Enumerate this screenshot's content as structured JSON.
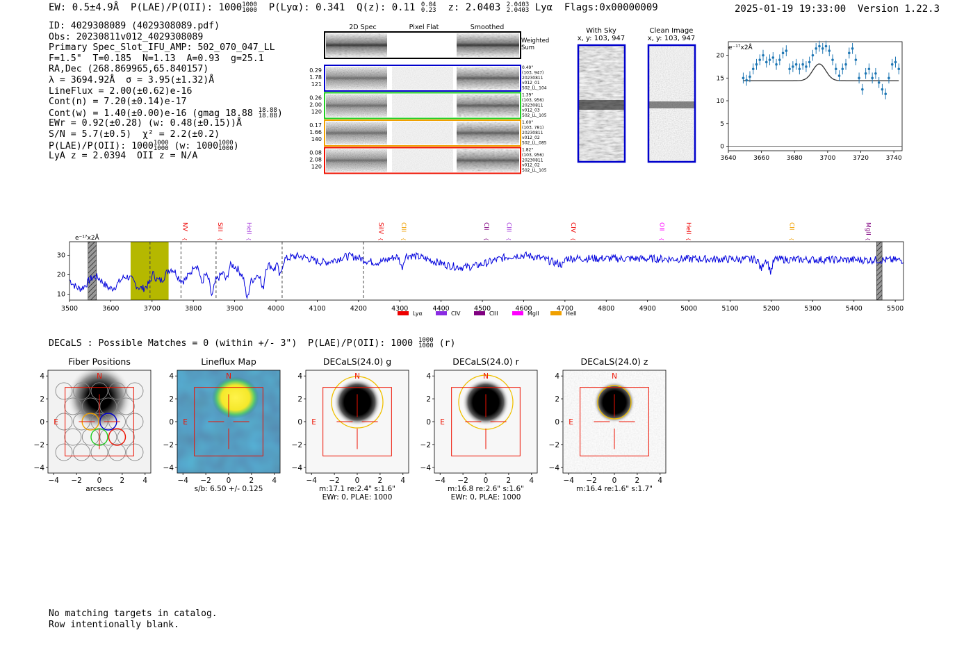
{
  "header": {
    "left": "EW: 0.5±4.9Å  P(LAE)/P(OII): 1000 1000/1000  P(Lyα): 0.341  Q(z): 0.11 0.04/0.23  z: 2.0403 2.0403/2.0403 Lyα  Flags:0x00000009",
    "ew": "EW: 0.5±4.9Å",
    "plae_label": "P(LAE)/P(OII):",
    "plae_val": "1000",
    "plae_hi": "1000",
    "plae_lo": "1000",
    "plya": "P(Lyα): 0.341",
    "qz": "Q(z): 0.11",
    "qz_hi": "0.04",
    "qz_lo": "0.23",
    "z": "z: 2.0403",
    "z_hi": "2.0403",
    "z_lo": "2.0403",
    "z_line": "Lyα",
    "flags": "Flags:0x00000009",
    "datetime": "2025-01-19 19:33:00",
    "version": "Version 1.22.3"
  },
  "info": {
    "id": "ID: 4029308089 (4029308089.pdf)",
    "obs": "Obs: 20230811v012_4029308089",
    "primary": "Primary Spec_Slot_IFU_AMP: 502_070_047_LL",
    "fwhm": "F=1.5\"  T=0.185  N=1.13  A=0.93  g=25.1",
    "radec": "RA,Dec (268.869965,65.840157)",
    "lambda": "λ = 3694.92Å  σ = 3.95(±1.32)Å",
    "lineflux": "LineFlux = 2.00(±0.62)e-16",
    "contn": "Cont(n) = 7.20(±0.14)e-17",
    "contw": "Cont(w) = 1.40(±0.00)e-16 (gmag 18.88",
    "gmag_hi": "18.88",
    "gmag_lo": "18.88",
    "ewr": "EWr = 0.92(±0.28) (w: 0.48(±0.15))Å",
    "sn": "S/N = 5.7(±0.5)  χ² = 2.2(±0.2)",
    "plae": "P(LAE)/P(OII): 1000",
    "plae_hi": "1000",
    "plae_lo": "1000",
    "plae_w": "(w: 1000",
    "plae_w_hi": "1000",
    "plae_w_lo": "1000",
    "lyaz": "LyA z = 2.0394  OII z = N/A"
  },
  "cutouts": {
    "col_titles": [
      "2D Spec",
      "Pixel Flat",
      "Smoothed"
    ],
    "weighted_sum": [
      "Weighted",
      "Sum"
    ],
    "rows": [
      {
        "nums": [
          "0.29",
          "1.78",
          "121"
        ],
        "meta": [
          "0.49\"",
          "(103, 947)",
          "20230811",
          "v012_01",
          "502_LL_104"
        ],
        "color": "#0000cc"
      },
      {
        "nums": [
          "0.26",
          "2.00",
          "120"
        ],
        "meta": [
          "1.39\"",
          "(103, 956)",
          "20230811",
          "v012_03",
          "502_LL_105"
        ],
        "color": "#22cc22"
      },
      {
        "nums": [
          "0.17",
          "1.66",
          "140"
        ],
        "meta": [
          "1.00\"",
          "(103, 781)",
          "20230811",
          "v012_02",
          "502_LL_085"
        ],
        "color": "#f0a000"
      },
      {
        "nums": [
          "0.08",
          "2.08",
          "120"
        ],
        "meta": [
          "1.82\"",
          "(103, 956)",
          "20230811",
          "v012_02",
          "502_LL_105"
        ],
        "color": "#ee1100"
      }
    ]
  },
  "sky_panels": [
    {
      "title": "With Sky",
      "coords": "x, y: 103, 947"
    },
    {
      "title": "Clean Image",
      "coords": "x, y: 103, 947"
    }
  ],
  "zoom_chart": {
    "type": "scatter",
    "unit": "e⁻¹⁷x2Å",
    "xlim": [
      3640,
      3745
    ],
    "ylim": [
      -1,
      23
    ],
    "xticks": [
      3640,
      3660,
      3680,
      3700,
      3720,
      3740
    ],
    "yticks": [
      0,
      5,
      10,
      15,
      20
    ],
    "points": [
      [
        3649,
        15
      ],
      [
        3651,
        14.5
      ],
      [
        3653,
        15.3
      ],
      [
        3655,
        17
      ],
      [
        3657,
        18
      ],
      [
        3659,
        19
      ],
      [
        3661,
        20
      ],
      [
        3663,
        18.5
      ],
      [
        3665,
        19
      ],
      [
        3667,
        19.5
      ],
      [
        3669,
        18
      ],
      [
        3671,
        19
      ],
      [
        3673,
        20.5
      ],
      [
        3675,
        21
      ],
      [
        3677,
        17
      ],
      [
        3679,
        17.5
      ],
      [
        3681,
        18
      ],
      [
        3683,
        17
      ],
      [
        3685,
        18
      ],
      [
        3687,
        17.5
      ],
      [
        3689,
        18.5
      ],
      [
        3691,
        20
      ],
      [
        3693,
        21.5
      ],
      [
        3695,
        22
      ],
      [
        3697,
        21.5
      ],
      [
        3699,
        22
      ],
      [
        3701,
        21
      ],
      [
        3703,
        19
      ],
      [
        3705,
        17
      ],
      [
        3707,
        15.5
      ],
      [
        3709,
        17
      ],
      [
        3711,
        18
      ],
      [
        3713,
        20.5
      ],
      [
        3715,
        21.5
      ],
      [
        3717,
        19
      ],
      [
        3719,
        15
      ],
      [
        3721,
        12.5
      ],
      [
        3723,
        16
      ],
      [
        3725,
        17
      ],
      [
        3727,
        15
      ],
      [
        3729,
        16
      ],
      [
        3731,
        14
      ],
      [
        3733,
        12.5
      ],
      [
        3735,
        11.5
      ],
      [
        3737,
        15
      ],
      [
        3739,
        18
      ],
      [
        3741,
        18.5
      ],
      [
        3743,
        17
      ]
    ],
    "model": {
      "continuum": 14.4,
      "center": 3694.92,
      "sigma": 3.95,
      "amp": 3.7,
      "x_range": [
        3649,
        3743
      ]
    }
  },
  "full_spectrum": {
    "type": "line",
    "unit": "e⁻¹⁷x2Å",
    "xlim": [
      3500,
      5520
    ],
    "ylim": [
      7,
      37
    ],
    "xticks": [
      3500,
      3600,
      3700,
      3800,
      3900,
      4000,
      4100,
      4200,
      4300,
      4400,
      4500,
      4600,
      4700,
      4800,
      4900,
      5000,
      5100,
      5200,
      5300,
      5400,
      5500
    ],
    "yticks": [
      10,
      20,
      30
    ],
    "line_labels": [
      {
        "label": "NV",
        "x": 3770,
        "color": "#ee0000"
      },
      {
        "label": "SiII",
        "x": 3855,
        "color": "#ee0000"
      },
      {
        "label": "HeII",
        "x": 3925,
        "color": "#aa44dd"
      },
      {
        "label": "SiIV",
        "x": 4245,
        "color": "#ee0000"
      },
      {
        "label": "CIII",
        "x": 4300,
        "color": "#f0a000"
      },
      {
        "label": "CII",
        "x": 4500,
        "color": "#800080"
      },
      {
        "label": "CIII",
        "x": 4555,
        "color": "#aa44dd"
      },
      {
        "label": "CIV",
        "x": 4710,
        "color": "#ee0000"
      },
      {
        "label": "OII",
        "x": 4925,
        "color": "#ff00ff"
      },
      {
        "label": "HeII",
        "x": 4990,
        "color": "#ee0000"
      },
      {
        "label": "CII",
        "x": 5240,
        "color": "#f0a000"
      },
      {
        "label": "MgII",
        "x": 5425,
        "color": "#800080"
      }
    ],
    "dashed_lines": [
      3695,
      3770,
      3855,
      4015,
      4212
    ],
    "highlight_band": [
      3648,
      3740
    ],
    "hatched_bands": [
      [
        3545,
        3565
      ],
      [
        5455,
        5468
      ]
    ],
    "legend": [
      {
        "label": "Lyα",
        "color": "#ee0000"
      },
      {
        "label": "CIV",
        "color": "#8a2be2"
      },
      {
        "label": "CIII",
        "color": "#800080"
      },
      {
        "label": "MgII",
        "color": "#ff00ff"
      },
      {
        "label": "HeII",
        "color": "#f0a000"
      }
    ]
  },
  "decals": {
    "title": "DECaLS : Possible Matches = 0 (within +/- 3\")  P(LAE)/P(OII): 1000",
    "title_hi": "1000",
    "title_lo": "1000",
    "title_suffix": "(r)",
    "ticks": [
      "−4",
      "−2",
      "0",
      "2",
      "4"
    ],
    "north": "N",
    "east": "E",
    "panels": [
      {
        "title": "Fiber Positions",
        "cap1": "arcsecs",
        "cap2": ""
      },
      {
        "title": "Lineflux Map",
        "cap1": "s/b: 6.50 +/- 0.125",
        "cap2": ""
      },
      {
        "title": "DECaLS(24.0) g",
        "cap1": "m:17.1  re:2.4\"  s:1.6\"",
        "cap2": "EWr: 0, PLAE: 1000"
      },
      {
        "title": "DECaLS(24.0) r",
        "cap1": "m:16.8  re:2.6\"  s:1.6\"",
        "cap2": "EWr: 0, PLAE: 1000"
      },
      {
        "title": "DECaLS(24.0) z",
        "cap1": "m:16.4  re:1.6\"  s:1.7\"",
        "cap2": ""
      }
    ]
  },
  "footer": {
    "line1": "No matching targets in catalog.",
    "line2": "Row intentionally blank."
  }
}
